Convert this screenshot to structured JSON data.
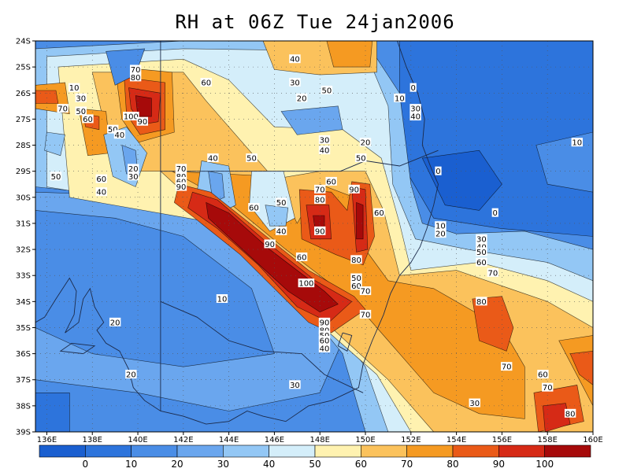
{
  "title": "RH at 06Z Tue 24jan2006",
  "map": {
    "lon_range": [
      135.5,
      160
    ],
    "lat_range": [
      -39,
      -24
    ],
    "lon_ticks": [
      "136E",
      "138E",
      "140E",
      "142E",
      "144E",
      "146E",
      "148E",
      "150E",
      "152E",
      "154E",
      "156E",
      "158E",
      "160E"
    ],
    "lat_ticks": [
      "24S",
      "25S",
      "26S",
      "27S",
      "28S",
      "29S",
      "30S",
      "31S",
      "32S",
      "33S",
      "34S",
      "35S",
      "36S",
      "37S",
      "38S",
      "39S"
    ],
    "grid": true,
    "colors": {
      "lt0": "#1a5fd0",
      "0_10": "#2d74dc",
      "10_20": "#4a8de6",
      "20_30": "#6aa6ee",
      "30_40": "#93c7f5",
      "40_50": "#d4eefa",
      "50_60": "#fff2b0",
      "60_70": "#fbc25c",
      "70_80": "#f59a22",
      "80_90": "#ea5a18",
      "90_100": "#d62a16",
      "gt100": "#a60a0a"
    },
    "contour_labels": [
      {
        "text": "10",
        "lon": 137.2,
        "lat": -25.8
      },
      {
        "text": "70",
        "lon": 136.7,
        "lat": -26.6
      },
      {
        "text": "30",
        "lon": 137.5,
        "lat": -26.2
      },
      {
        "text": "50",
        "lon": 137.5,
        "lat": -26.7
      },
      {
        "text": "60",
        "lon": 137.8,
        "lat": -27.0
      },
      {
        "text": "70",
        "lon": 139.9,
        "lat": -25.1
      },
      {
        "text": "80",
        "lon": 139.9,
        "lat": -25.4
      },
      {
        "text": "60",
        "lon": 143.0,
        "lat": -25.6
      },
      {
        "text": "100",
        "lon": 139.7,
        "lat": -26.9
      },
      {
        "text": "90",
        "lon": 140.2,
        "lat": -27.1
      },
      {
        "text": "50",
        "lon": 138.9,
        "lat": -27.4
      },
      {
        "text": "40",
        "lon": 139.2,
        "lat": -27.6
      },
      {
        "text": "20",
        "lon": 139.8,
        "lat": -28.9
      },
      {
        "text": "30",
        "lon": 139.8,
        "lat": -29.2
      },
      {
        "text": "50",
        "lon": 136.4,
        "lat": -29.2
      },
      {
        "text": "60",
        "lon": 138.4,
        "lat": -29.3
      },
      {
        "text": "40",
        "lon": 138.4,
        "lat": -29.8
      },
      {
        "text": "70",
        "lon": 141.9,
        "lat": -28.9
      },
      {
        "text": "80",
        "lon": 141.9,
        "lat": -29.2
      },
      {
        "text": "60",
        "lon": 141.9,
        "lat": -29.4
      },
      {
        "text": "90",
        "lon": 141.9,
        "lat": -29.6
      },
      {
        "text": "40",
        "lon": 143.3,
        "lat": -28.5
      },
      {
        "text": "50",
        "lon": 145.0,
        "lat": -28.5
      },
      {
        "text": "40",
        "lon": 146.9,
        "lat": -24.7
      },
      {
        "text": "30",
        "lon": 146.9,
        "lat": -25.6
      },
      {
        "text": "20",
        "lon": 147.2,
        "lat": -26.2
      },
      {
        "text": "50",
        "lon": 148.3,
        "lat": -25.9
      },
      {
        "text": "30",
        "lon": 148.2,
        "lat": -27.8
      },
      {
        "text": "40",
        "lon": 148.2,
        "lat": -28.2
      },
      {
        "text": "20",
        "lon": 150.0,
        "lat": -27.9
      },
      {
        "text": "50",
        "lon": 149.8,
        "lat": -28.5
      },
      {
        "text": "0",
        "lon": 152.1,
        "lat": -25.8
      },
      {
        "text": "10",
        "lon": 151.5,
        "lat": -26.2
      },
      {
        "text": "30",
        "lon": 152.2,
        "lat": -26.6
      },
      {
        "text": "40",
        "lon": 152.2,
        "lat": -26.9
      },
      {
        "text": "60",
        "lon": 148.5,
        "lat": -29.4
      },
      {
        "text": "70",
        "lon": 148.0,
        "lat": -29.7
      },
      {
        "text": "80",
        "lon": 148.0,
        "lat": -30.1
      },
      {
        "text": "90",
        "lon": 149.5,
        "lat": -29.7
      },
      {
        "text": "60",
        "lon": 145.1,
        "lat": -30.4
      },
      {
        "text": "50",
        "lon": 146.3,
        "lat": -30.2
      },
      {
        "text": "40",
        "lon": 146.3,
        "lat": -31.3
      },
      {
        "text": "60",
        "lon": 150.6,
        "lat": -30.6
      },
      {
        "text": "90",
        "lon": 148.0,
        "lat": -31.3
      },
      {
        "text": "0",
        "lon": 153.2,
        "lat": -29.0
      },
      {
        "text": "0",
        "lon": 155.7,
        "lat": -30.6
      },
      {
        "text": "10",
        "lon": 159.3,
        "lat": -27.9
      },
      {
        "text": "10",
        "lon": 153.3,
        "lat": -31.1
      },
      {
        "text": "20",
        "lon": 153.3,
        "lat": -31.4
      },
      {
        "text": "30",
        "lon": 155.1,
        "lat": -31.6
      },
      {
        "text": "40",
        "lon": 155.1,
        "lat": -31.9
      },
      {
        "text": "50",
        "lon": 155.1,
        "lat": -32.1
      },
      {
        "text": "60",
        "lon": 155.1,
        "lat": -32.5
      },
      {
        "text": "70",
        "lon": 155.6,
        "lat": -32.9
      },
      {
        "text": "90",
        "lon": 145.8,
        "lat": -31.8
      },
      {
        "text": "60",
        "lon": 147.2,
        "lat": -32.3
      },
      {
        "text": "80",
        "lon": 149.6,
        "lat": -32.4
      },
      {
        "text": "100",
        "lon": 147.4,
        "lat": -33.3
      },
      {
        "text": "50",
        "lon": 149.6,
        "lat": -33.1
      },
      {
        "text": "60",
        "lon": 149.6,
        "lat": -33.4
      },
      {
        "text": "70",
        "lon": 150.0,
        "lat": -33.6
      },
      {
        "text": "80",
        "lon": 155.1,
        "lat": -34.0
      },
      {
        "text": "10",
        "lon": 143.7,
        "lat": -33.9
      },
      {
        "text": "70",
        "lon": 150.0,
        "lat": -34.5
      },
      {
        "text": "90",
        "lon": 148.2,
        "lat": -34.8
      },
      {
        "text": "80",
        "lon": 148.2,
        "lat": -35.1
      },
      {
        "text": "50",
        "lon": 148.2,
        "lat": -35.3
      },
      {
        "text": "60",
        "lon": 148.2,
        "lat": -35.5
      },
      {
        "text": "40",
        "lon": 148.2,
        "lat": -35.8
      },
      {
        "text": "20",
        "lon": 139.0,
        "lat": -34.8
      },
      {
        "text": "20",
        "lon": 139.7,
        "lat": -36.8
      },
      {
        "text": "70",
        "lon": 156.2,
        "lat": -36.5
      },
      {
        "text": "60",
        "lon": 157.8,
        "lat": -36.8
      },
      {
        "text": "70",
        "lon": 158.0,
        "lat": -37.3
      },
      {
        "text": "30",
        "lon": 146.9,
        "lat": -37.2
      },
      {
        "text": "30",
        "lon": 154.8,
        "lat": -37.9
      },
      {
        "text": "80",
        "lon": 159.0,
        "lat": -38.3
      }
    ]
  },
  "colorbar": {
    "labels": [
      "0",
      "10",
      "20",
      "30",
      "40",
      "50",
      "60",
      "70",
      "80",
      "90",
      "100"
    ],
    "colors": [
      "#1a5fd0",
      "#2d74dc",
      "#4a8de6",
      "#6aa6ee",
      "#93c7f5",
      "#d4eefa",
      "#fff2b0",
      "#fbc25c",
      "#f59a22",
      "#ea5a18",
      "#d62a16",
      "#a60a0a"
    ]
  }
}
